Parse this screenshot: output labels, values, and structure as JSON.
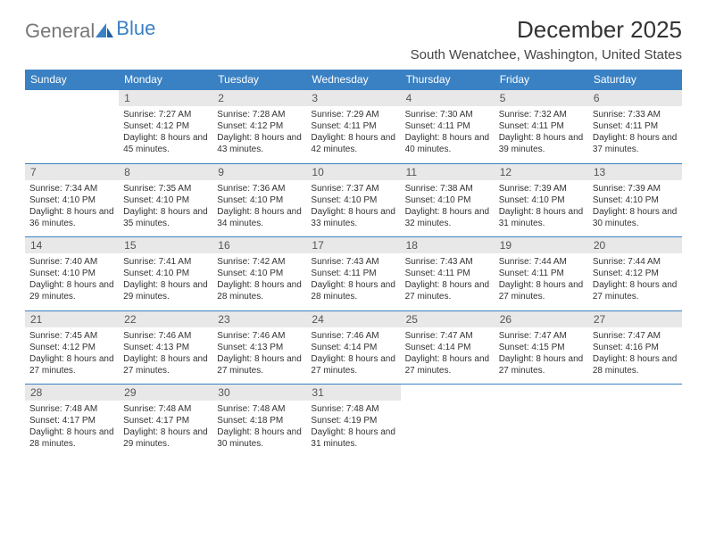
{
  "logo": {
    "text1": "General",
    "text2": "Blue"
  },
  "title": "December 2025",
  "location": "South Wenatchee, Washington, United States",
  "colors": {
    "header_bg": "#3a81c3",
    "header_fg": "#ffffff",
    "daynum_bg": "#e8e8e8",
    "border": "#3a81c3",
    "logo_grey": "#777777",
    "logo_blue": "#3a81c3"
  },
  "dayNames": [
    "Sunday",
    "Monday",
    "Tuesday",
    "Wednesday",
    "Thursday",
    "Friday",
    "Saturday"
  ],
  "weeks": [
    {
      "nums": [
        "",
        "1",
        "2",
        "3",
        "4",
        "5",
        "6"
      ],
      "cells": [
        null,
        {
          "sr": "7:27 AM",
          "ss": "4:12 PM",
          "dl": "8 hours and 45 minutes."
        },
        {
          "sr": "7:28 AM",
          "ss": "4:12 PM",
          "dl": "8 hours and 43 minutes."
        },
        {
          "sr": "7:29 AM",
          "ss": "4:11 PM",
          "dl": "8 hours and 42 minutes."
        },
        {
          "sr": "7:30 AM",
          "ss": "4:11 PM",
          "dl": "8 hours and 40 minutes."
        },
        {
          "sr": "7:32 AM",
          "ss": "4:11 PM",
          "dl": "8 hours and 39 minutes."
        },
        {
          "sr": "7:33 AM",
          "ss": "4:11 PM",
          "dl": "8 hours and 37 minutes."
        }
      ]
    },
    {
      "nums": [
        "7",
        "8",
        "9",
        "10",
        "11",
        "12",
        "13"
      ],
      "cells": [
        {
          "sr": "7:34 AM",
          "ss": "4:10 PM",
          "dl": "8 hours and 36 minutes."
        },
        {
          "sr": "7:35 AM",
          "ss": "4:10 PM",
          "dl": "8 hours and 35 minutes."
        },
        {
          "sr": "7:36 AM",
          "ss": "4:10 PM",
          "dl": "8 hours and 34 minutes."
        },
        {
          "sr": "7:37 AM",
          "ss": "4:10 PM",
          "dl": "8 hours and 33 minutes."
        },
        {
          "sr": "7:38 AM",
          "ss": "4:10 PM",
          "dl": "8 hours and 32 minutes."
        },
        {
          "sr": "7:39 AM",
          "ss": "4:10 PM",
          "dl": "8 hours and 31 minutes."
        },
        {
          "sr": "7:39 AM",
          "ss": "4:10 PM",
          "dl": "8 hours and 30 minutes."
        }
      ]
    },
    {
      "nums": [
        "14",
        "15",
        "16",
        "17",
        "18",
        "19",
        "20"
      ],
      "cells": [
        {
          "sr": "7:40 AM",
          "ss": "4:10 PM",
          "dl": "8 hours and 29 minutes."
        },
        {
          "sr": "7:41 AM",
          "ss": "4:10 PM",
          "dl": "8 hours and 29 minutes."
        },
        {
          "sr": "7:42 AM",
          "ss": "4:10 PM",
          "dl": "8 hours and 28 minutes."
        },
        {
          "sr": "7:43 AM",
          "ss": "4:11 PM",
          "dl": "8 hours and 28 minutes."
        },
        {
          "sr": "7:43 AM",
          "ss": "4:11 PM",
          "dl": "8 hours and 27 minutes."
        },
        {
          "sr": "7:44 AM",
          "ss": "4:11 PM",
          "dl": "8 hours and 27 minutes."
        },
        {
          "sr": "7:44 AM",
          "ss": "4:12 PM",
          "dl": "8 hours and 27 minutes."
        }
      ]
    },
    {
      "nums": [
        "21",
        "22",
        "23",
        "24",
        "25",
        "26",
        "27"
      ],
      "cells": [
        {
          "sr": "7:45 AM",
          "ss": "4:12 PM",
          "dl": "8 hours and 27 minutes."
        },
        {
          "sr": "7:46 AM",
          "ss": "4:13 PM",
          "dl": "8 hours and 27 minutes."
        },
        {
          "sr": "7:46 AM",
          "ss": "4:13 PM",
          "dl": "8 hours and 27 minutes."
        },
        {
          "sr": "7:46 AM",
          "ss": "4:14 PM",
          "dl": "8 hours and 27 minutes."
        },
        {
          "sr": "7:47 AM",
          "ss": "4:14 PM",
          "dl": "8 hours and 27 minutes."
        },
        {
          "sr": "7:47 AM",
          "ss": "4:15 PM",
          "dl": "8 hours and 27 minutes."
        },
        {
          "sr": "7:47 AM",
          "ss": "4:16 PM",
          "dl": "8 hours and 28 minutes."
        }
      ]
    },
    {
      "nums": [
        "28",
        "29",
        "30",
        "31",
        "",
        "",
        ""
      ],
      "cells": [
        {
          "sr": "7:48 AM",
          "ss": "4:17 PM",
          "dl": "8 hours and 28 minutes."
        },
        {
          "sr": "7:48 AM",
          "ss": "4:17 PM",
          "dl": "8 hours and 29 minutes."
        },
        {
          "sr": "7:48 AM",
          "ss": "4:18 PM",
          "dl": "8 hours and 30 minutes."
        },
        {
          "sr": "7:48 AM",
          "ss": "4:19 PM",
          "dl": "8 hours and 31 minutes."
        },
        null,
        null,
        null
      ]
    }
  ],
  "labels": {
    "sunrise": "Sunrise: ",
    "sunset": "Sunset: ",
    "daylight": "Daylight: "
  }
}
